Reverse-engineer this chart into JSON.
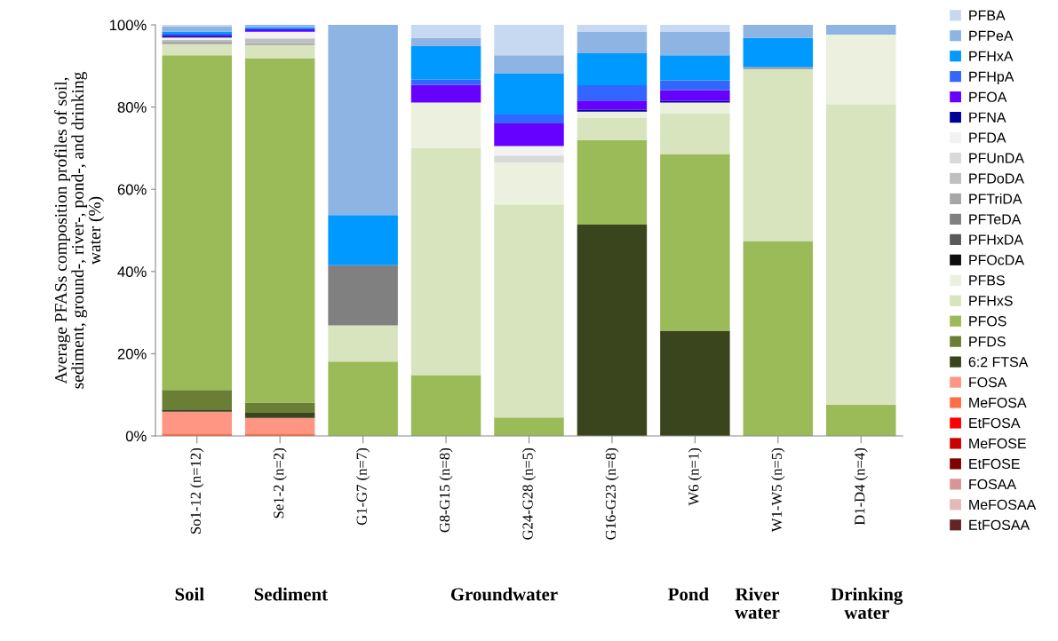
{
  "chart_data": {
    "type": "bar",
    "stacked": true,
    "ylabel": "Average PFASs composition profiles of soil,\nsediment, ground-, river-, pond-, and drinking\nwater (%)",
    "categories": [
      "So1-12 (n=12)",
      "Se1-2 (n=2)",
      "G1-G7 (n=7)",
      "G8-G15 (n=8)",
      "G24-G28 (n=5)",
      "G16-G23 (n=8)",
      "W6 (n=1)",
      "W1-W5 (n=5)",
      "D1-D4 (n=4)"
    ],
    "ylim": [
      0,
      100
    ],
    "yticks": [
      {
        "value": 0,
        "label": "0%"
      },
      {
        "value": 20,
        "label": "20%"
      },
      {
        "value": 40,
        "label": "40%"
      },
      {
        "value": 60,
        "label": "60%"
      },
      {
        "value": 80,
        "label": "80%"
      },
      {
        "value": 100,
        "label": "100%"
      }
    ],
    "grid": false,
    "legend": "right",
    "annotations": [
      "Soil",
      "Sediment",
      "Groundwater",
      "Pond",
      "River\nwater",
      "Drinking\nwater"
    ],
    "series": [
      {
        "name": "EtFOSAA",
        "color": "#632523",
        "values": [
          null,
          null,
          null,
          null,
          null,
          null,
          null,
          null,
          null
        ]
      },
      {
        "name": "MeFOSAA",
        "color": "#e6b9b8",
        "values": [
          null,
          null,
          null,
          null,
          null,
          null,
          null,
          null,
          null
        ]
      },
      {
        "name": "FOSAA",
        "color": "#d99594",
        "values": [
          null,
          null,
          null,
          null,
          null,
          null,
          null,
          null,
          null
        ]
      },
      {
        "name": "EtFOSE",
        "color": "#800000",
        "values": [
          null,
          null,
          null,
          null,
          null,
          null,
          null,
          null,
          null
        ]
      },
      {
        "name": "MeFOSE",
        "color": "#cc0000",
        "values": [
          null,
          null,
          null,
          null,
          null,
          null,
          null,
          null,
          null
        ]
      },
      {
        "name": "EtFOSA",
        "color": "#ff0000",
        "values": [
          null,
          null,
          null,
          null,
          null,
          null,
          null,
          null,
          null
        ]
      },
      {
        "name": "MeFOSA",
        "color": "#ff6f47",
        "values": [
          0.6,
          0.6,
          null,
          null,
          null,
          null,
          null,
          null,
          null
        ]
      },
      {
        "name": "FOSA",
        "color": "#ff9583",
        "values": [
          5.3,
          3.8,
          null,
          null,
          null,
          null,
          null,
          null,
          null
        ]
      },
      {
        "name": "6:2 FTSA",
        "color": "#3a451e",
        "values": [
          0.5,
          1.2,
          null,
          null,
          null,
          51.4,
          25.6,
          null,
          null
        ]
      },
      {
        "name": "PFDS",
        "color": "#6a7f35",
        "values": [
          4.8,
          2.5,
          null,
          null,
          null,
          null,
          null,
          null,
          null
        ]
      },
      {
        "name": "PFOS",
        "color": "#9bbb59",
        "values": [
          81.4,
          83.8,
          18.1,
          14.8,
          4.5,
          20.6,
          43.0,
          47.4,
          7.6
        ]
      },
      {
        "name": "PFHxS",
        "color": "#d7e4bd",
        "values": [
          2.7,
          3.2,
          8.8,
          55.3,
          51.8,
          5.3,
          9.9,
          41.8,
          73.1
        ]
      },
      {
        "name": "PFBS",
        "color": "#ebf1de",
        "values": [
          null,
          null,
          null,
          11.0,
          10.2,
          1.6,
          2.6,
          null,
          16.9
        ]
      },
      {
        "name": "PFOcDA",
        "color": "#0d0d0d",
        "values": [
          null,
          null,
          null,
          null,
          null,
          null,
          null,
          null,
          null
        ]
      },
      {
        "name": "PFHxDA",
        "color": "#595959",
        "values": [
          null,
          null,
          null,
          null,
          null,
          null,
          null,
          null,
          null
        ]
      },
      {
        "name": "PFTeDA",
        "color": "#808080",
        "values": [
          null,
          null,
          14.6,
          null,
          null,
          null,
          null,
          null,
          null
        ]
      },
      {
        "name": "PFTriDA",
        "color": "#a6a6a6",
        "values": [
          0.6,
          0.4,
          null,
          null,
          null,
          null,
          null,
          0.5,
          null
        ]
      },
      {
        "name": "PFDoDA",
        "color": "#bfbfbf",
        "values": [
          0.5,
          1.2,
          null,
          null,
          null,
          null,
          null,
          null,
          null
        ]
      },
      {
        "name": "PFUnDA",
        "color": "#d9d9d9",
        "values": [
          null,
          null,
          null,
          null,
          1.7,
          null,
          null,
          null,
          null
        ]
      },
      {
        "name": "PFDA",
        "color": "#f2f2f2",
        "values": [
          0.5,
          1.6,
          null,
          null,
          2.3,
          null,
          null,
          null,
          null
        ]
      },
      {
        "name": "PFNA",
        "color": "#000099",
        "values": [
          0.4,
          null,
          null,
          null,
          null,
          0.5,
          0.4,
          null,
          null
        ]
      },
      {
        "name": "PFOA",
        "color": "#6600ff",
        "values": [
          0.3,
          0.6,
          null,
          4.3,
          5.5,
          2.2,
          2.6,
          null,
          null
        ]
      },
      {
        "name": "PFHpA",
        "color": "#3366ff",
        "values": [
          null,
          null,
          null,
          1.3,
          2.2,
          3.7,
          2.4,
          null,
          null
        ]
      },
      {
        "name": "PFHxA",
        "color": "#0099ff",
        "values": [
          0.8,
          0.5,
          12.2,
          8.1,
          9.9,
          7.8,
          6.1,
          7.1,
          null
        ]
      },
      {
        "name": "PFPeA",
        "color": "#8eb4e3",
        "values": [
          1.2,
          0.6,
          46.3,
          2.0,
          4.5,
          5.3,
          5.8,
          3.2,
          2.4
        ]
      },
      {
        "name": "PFBA",
        "color": "#c6d9f1",
        "values": [
          0.4,
          null,
          null,
          3.2,
          7.4,
          1.6,
          1.6,
          null,
          null
        ]
      }
    ]
  }
}
